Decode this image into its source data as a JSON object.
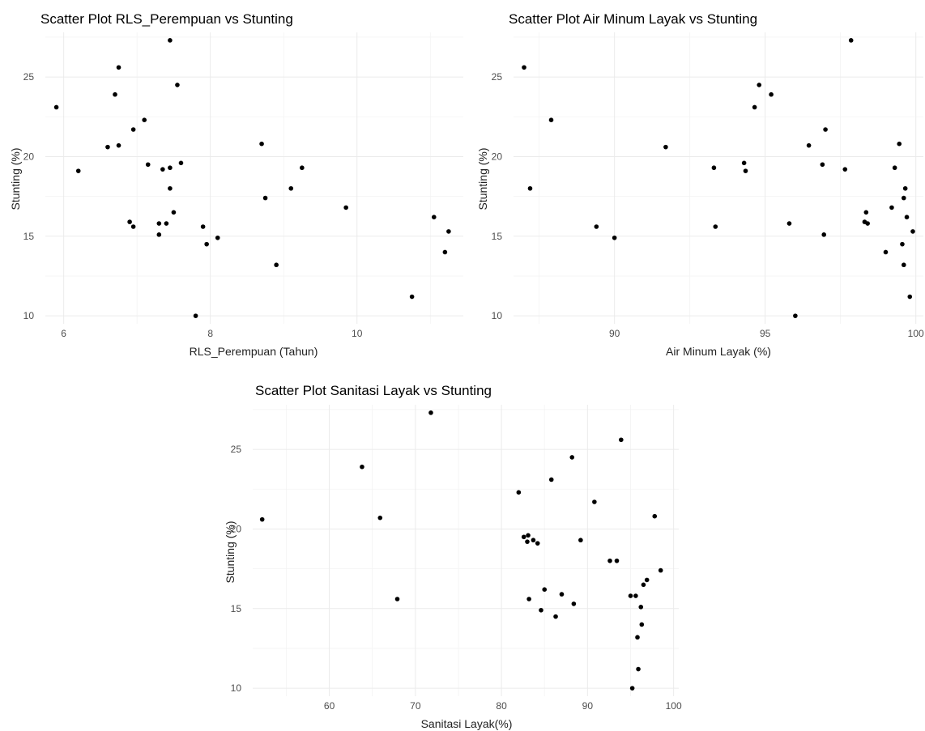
{
  "chart_data": [
    {
      "type": "scatter",
      "title": "Scatter Plot RLS_Perempuan vs Stunting",
      "xlabel": "RLS_Perempuan (Tahun)",
      "ylabel": "Stunting (%)",
      "xlim": [
        5.75,
        11.45
      ],
      "ylim": [
        9.5,
        27.8
      ],
      "xticks": [
        6,
        8,
        10
      ],
      "yticks": [
        10,
        15,
        20,
        25
      ],
      "grid": true,
      "x": [
        5.9,
        6.2,
        6.6,
        6.7,
        6.75,
        6.75,
        6.9,
        6.95,
        6.95,
        7.1,
        7.15,
        7.3,
        7.3,
        7.35,
        7.4,
        7.45,
        7.45,
        7.45,
        7.5,
        7.55,
        7.6,
        7.8,
        7.9,
        7.95,
        8.1,
        8.7,
        8.75,
        8.9,
        9.1,
        9.25,
        9.85,
        10.75,
        11.05,
        11.2,
        11.25
      ],
      "y": [
        23.1,
        19.1,
        20.6,
        23.9,
        25.6,
        20.7,
        15.9,
        15.6,
        21.7,
        22.3,
        19.5,
        15.8,
        15.1,
        19.2,
        15.8,
        19.3,
        18.0,
        27.3,
        16.5,
        24.5,
        19.6,
        10.0,
        15.6,
        14.5,
        14.9,
        20.8,
        17.4,
        13.2,
        18.0,
        19.3,
        16.8,
        11.2,
        16.2,
        14.0,
        15.3
      ]
    },
    {
      "type": "scatter",
      "title": "Scatter Plot Air Minum Layak vs Stunting",
      "xlabel": "Air Minum Layak (%)",
      "ylabel": "Stunting (%)",
      "xlim": [
        86.65,
        100.25
      ],
      "ylim": [
        9.5,
        27.8
      ],
      "xticks": [
        90,
        95,
        100
      ],
      "yticks": [
        10,
        15,
        20,
        25
      ],
      "grid": true,
      "x": [
        87.0,
        87.2,
        87.9,
        89.4,
        90.0,
        91.7,
        93.3,
        93.35,
        94.3,
        94.35,
        94.65,
        94.8,
        95.2,
        95.8,
        96.0,
        96.45,
        96.9,
        96.95,
        97.0,
        97.65,
        97.85,
        98.3,
        98.35,
        98.4,
        99.0,
        99.2,
        99.3,
        99.45,
        99.55,
        99.6,
        99.6,
        99.65,
        99.7,
        99.8,
        99.9
      ],
      "y": [
        25.6,
        18.0,
        22.3,
        15.6,
        14.9,
        20.6,
        19.3,
        15.6,
        19.6,
        19.1,
        23.1,
        24.5,
        23.9,
        15.8,
        10.0,
        20.7,
        19.5,
        15.1,
        21.7,
        19.2,
        27.3,
        15.9,
        16.5,
        15.8,
        14.0,
        16.8,
        19.3,
        20.8,
        14.5,
        13.2,
        17.4,
        18.0,
        16.2,
        11.2,
        15.3
      ]
    },
    {
      "type": "scatter",
      "title": "Scatter Plot Sanitasi Layak vs Stunting",
      "xlabel": "Sanitasi Layak(%)",
      "ylabel": "Stunting (%)",
      "xlim": [
        51.1,
        100.6
      ],
      "ylim": [
        9.5,
        27.8
      ],
      "xticks": [
        60,
        70,
        80,
        90,
        100
      ],
      "yticks": [
        10,
        15,
        20,
        25
      ],
      "grid": true,
      "x": [
        52.2,
        63.8,
        65.9,
        67.9,
        71.8,
        82.0,
        82.6,
        83.0,
        83.1,
        83.2,
        83.7,
        84.2,
        84.6,
        85.0,
        85.8,
        86.3,
        87.0,
        88.2,
        88.4,
        89.2,
        90.8,
        92.6,
        93.4,
        93.9,
        95.0,
        95.2,
        95.6,
        95.8,
        95.9,
        96.2,
        96.3,
        96.5,
        96.9,
        97.8,
        98.5
      ],
      "y": [
        20.6,
        23.9,
        20.7,
        15.6,
        27.3,
        22.3,
        19.5,
        19.2,
        19.6,
        15.6,
        19.3,
        19.1,
        14.9,
        16.2,
        23.1,
        14.5,
        15.9,
        24.5,
        15.3,
        19.3,
        21.7,
        18.0,
        18.0,
        25.6,
        15.8,
        10.0,
        15.8,
        13.2,
        11.2,
        15.1,
        14.0,
        16.5,
        16.8,
        20.8,
        17.4
      ]
    }
  ]
}
